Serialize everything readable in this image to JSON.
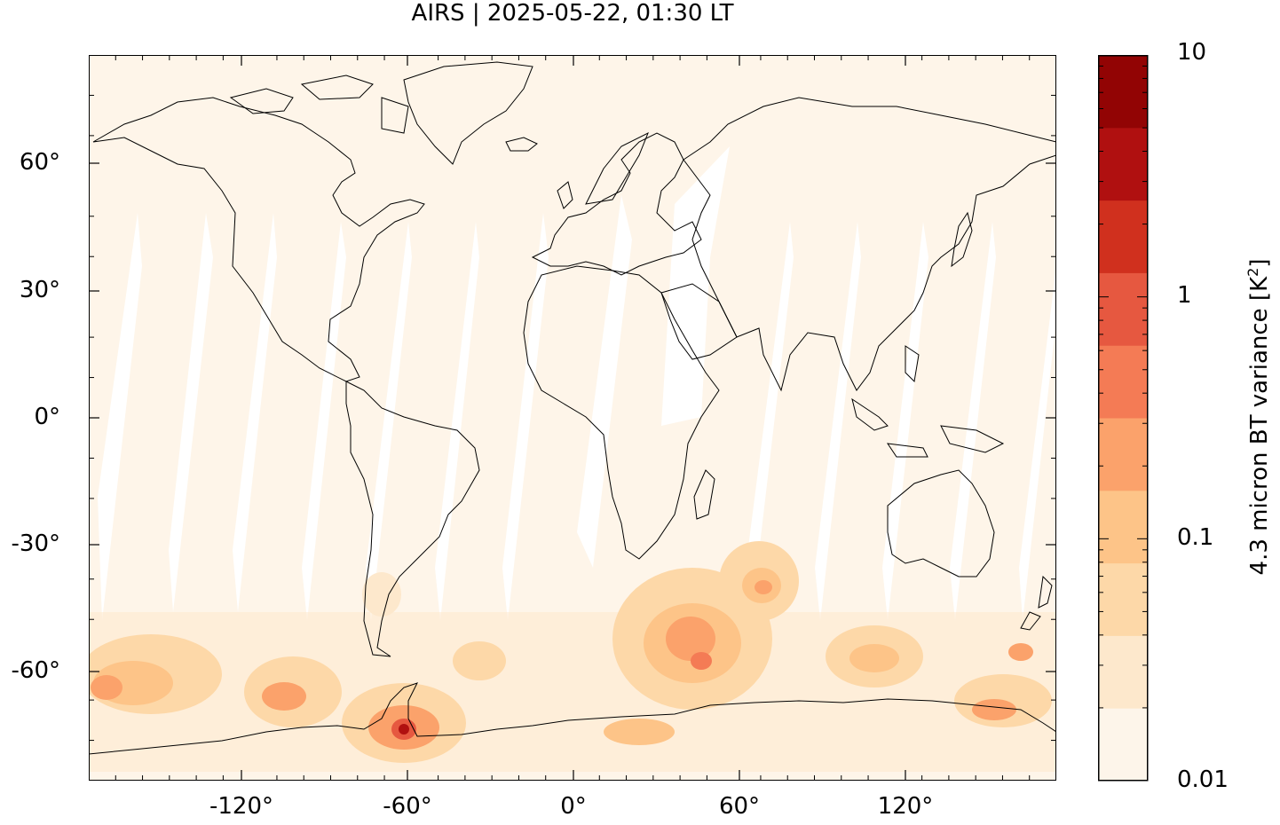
{
  "title": "AIRS | 2025-05-22, 01:30 LT",
  "map": {
    "projection": "equirectangular",
    "lon_range": [
      -180,
      180
    ],
    "lat_range": [
      -90,
      90
    ],
    "y_tick_labels": [
      "60°",
      "30°",
      "0°",
      "-30°",
      "-60°"
    ],
    "x_tick_labels": [
      "-120°",
      "-60°",
      "0°",
      "60°",
      "120°"
    ],
    "background_color": "#fef5e9",
    "coastline_color": "#000000"
  },
  "colorbar": {
    "label_prefix": "4.3 micron BT variance [K",
    "label_sup": "2",
    "label_suffix": "]",
    "scale": "log",
    "range": [
      0.01,
      10
    ],
    "tick_labels": [
      "10",
      "1",
      "0.1",
      "0.01"
    ],
    "colors": [
      "#fdf5ea",
      "#fde8cc",
      "#fdd8a8",
      "#fdc488",
      "#fba26b",
      "#f47b55",
      "#e65840",
      "#d0301e",
      "#b01010",
      "#920404"
    ]
  }
}
